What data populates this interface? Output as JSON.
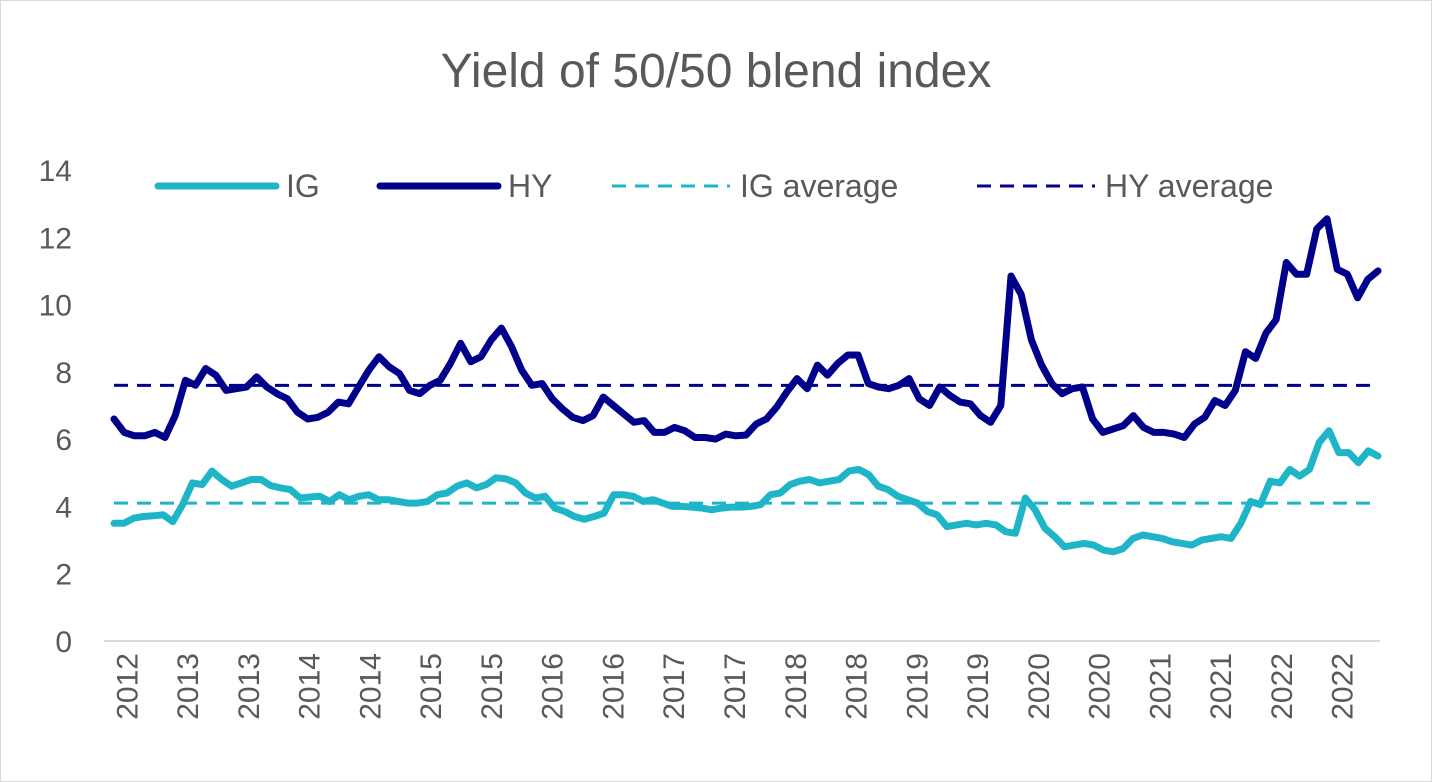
{
  "chart_data": {
    "type": "line",
    "title": "Yield of 50/50 blend index",
    "xlabel": "",
    "ylabel": "",
    "ylim": [
      0,
      14
    ],
    "yticks": [
      0,
      2,
      4,
      6,
      8,
      10,
      12,
      14
    ],
    "xtick_labels": [
      "2012",
      "2013",
      "2013",
      "2014",
      "2014",
      "2015",
      "2015",
      "2016",
      "2016",
      "2017",
      "2017",
      "2018",
      "2018",
      "2019",
      "2019",
      "2020",
      "2020",
      "2021",
      "2021",
      "2022",
      "2022"
    ],
    "grid": false,
    "legend_position": "top",
    "series": [
      {
        "name": "IG",
        "style": "solid",
        "color": "#1FB5C9",
        "values": [
          3.5,
          3.5,
          3.65,
          3.7,
          3.72,
          3.75,
          3.55,
          4.05,
          4.7,
          4.65,
          5.05,
          4.8,
          4.6,
          4.7,
          4.8,
          4.8,
          4.62,
          4.55,
          4.5,
          4.25,
          4.28,
          4.3,
          4.15,
          4.35,
          4.2,
          4.3,
          4.35,
          4.2,
          4.2,
          4.15,
          4.1,
          4.1,
          4.15,
          4.35,
          4.4,
          4.6,
          4.7,
          4.55,
          4.65,
          4.85,
          4.82,
          4.7,
          4.4,
          4.25,
          4.3,
          3.95,
          3.85,
          3.7,
          3.62,
          3.7,
          3.8,
          4.35,
          4.35,
          4.3,
          4.15,
          4.2,
          4.1,
          4.0,
          4.0,
          3.98,
          3.95,
          3.9,
          3.95,
          3.98,
          3.98,
          4.0,
          4.05,
          4.35,
          4.4,
          4.65,
          4.75,
          4.8,
          4.7,
          4.75,
          4.8,
          5.05,
          5.1,
          4.95,
          4.6,
          4.5,
          4.3,
          4.2,
          4.1,
          3.85,
          3.75,
          3.4,
          3.45,
          3.5,
          3.45,
          3.5,
          3.45,
          3.25,
          3.2,
          4.25,
          3.9,
          3.35,
          3.1,
          2.8,
          2.85,
          2.9,
          2.85,
          2.7,
          2.65,
          2.75,
          3.05,
          3.15,
          3.1,
          3.05,
          2.95,
          2.9,
          2.85,
          3.0,
          3.05,
          3.1,
          3.05,
          3.5,
          4.15,
          4.05,
          4.75,
          4.7,
          5.1,
          4.9,
          5.1,
          5.9,
          6.25,
          5.6,
          5.6,
          5.3,
          5.65,
          5.5
        ]
      },
      {
        "name": "HY",
        "style": "solid",
        "color": "#00008B",
        "values": [
          6.6,
          6.2,
          6.1,
          6.1,
          6.2,
          6.05,
          6.7,
          7.75,
          7.6,
          8.1,
          7.9,
          7.45,
          7.5,
          7.55,
          7.85,
          7.55,
          7.35,
          7.2,
          6.8,
          6.6,
          6.65,
          6.8,
          7.1,
          7.05,
          7.55,
          8.05,
          8.45,
          8.15,
          7.95,
          7.45,
          7.35,
          7.6,
          7.75,
          8.25,
          8.85,
          8.3,
          8.45,
          8.95,
          9.3,
          8.75,
          8.05,
          7.6,
          7.65,
          7.2,
          6.9,
          6.65,
          6.55,
          6.7,
          7.25,
          7.0,
          6.75,
          6.5,
          6.55,
          6.2,
          6.2,
          6.35,
          6.25,
          6.05,
          6.05,
          6.0,
          6.15,
          6.1,
          6.12,
          6.45,
          6.6,
          6.95,
          7.4,
          7.8,
          7.5,
          8.2,
          7.9,
          8.25,
          8.5,
          8.5,
          7.65,
          7.55,
          7.5,
          7.6,
          7.8,
          7.2,
          7.0,
          7.55,
          7.3,
          7.1,
          7.05,
          6.7,
          6.5,
          7.0,
          10.85,
          10.3,
          8.95,
          8.2,
          7.65,
          7.35,
          7.5,
          7.55,
          6.6,
          6.2,
          6.3,
          6.4,
          6.7,
          6.35,
          6.2,
          6.2,
          6.15,
          6.05,
          6.45,
          6.65,
          7.15,
          7.0,
          7.45,
          8.6,
          8.4,
          9.15,
          9.55,
          11.25,
          10.9,
          10.9,
          12.25,
          12.55,
          11.05,
          10.9,
          10.2,
          10.75,
          11.0
        ]
      },
      {
        "name": "IG average",
        "style": "dashed",
        "color": "#1FB5C9",
        "value": 4.1
      },
      {
        "name": "HY average",
        "style": "dashed",
        "color": "#00008B",
        "value": 7.6
      }
    ]
  }
}
